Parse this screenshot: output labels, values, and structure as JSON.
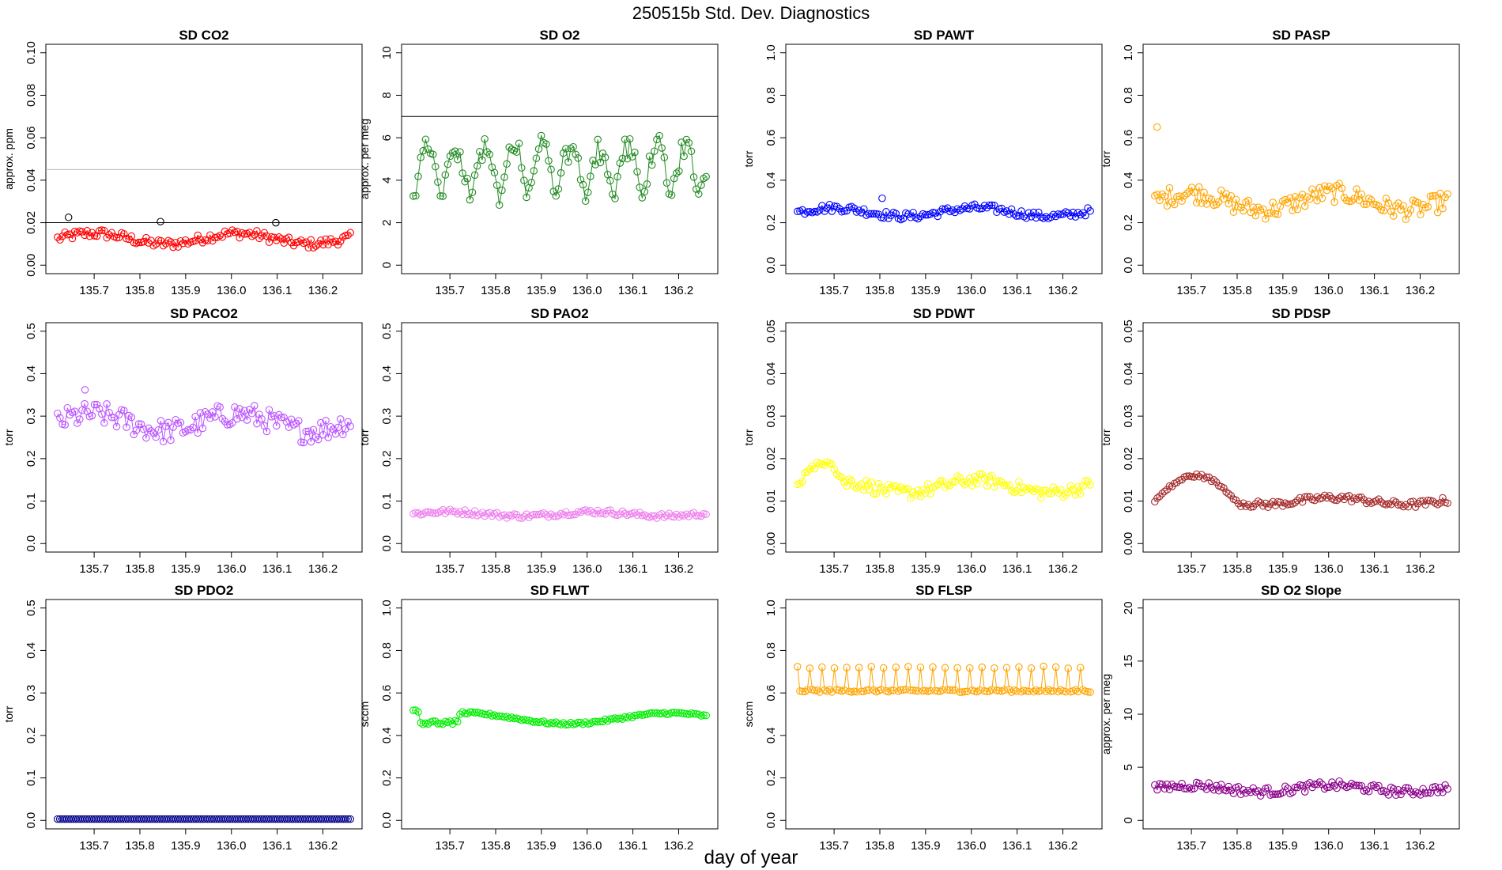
{
  "figure": {
    "title": "250515b   Std. Dev. Diagnostics",
    "xlabel": "day of year"
  },
  "chart_data": [
    {
      "type": "scatter",
      "title": "SD CO2",
      "ylabel": "approx. ppm",
      "color": "#ff0000",
      "ylim": [
        0,
        0.1
      ],
      "yticks": [
        0,
        0.02,
        0.04,
        0.06,
        0.08,
        0.1
      ],
      "ydec": 2,
      "base": 0.0125,
      "amp": 0.0025,
      "noise": 0.0022,
      "period": 0,
      "hlines": [
        {
          "y": 0.02,
          "color": "#000000"
        },
        {
          "y": 0.045,
          "color": "#bbbbbb"
        }
      ],
      "outliers": [
        {
          "x": 135.644,
          "y": 0.0225,
          "color": "#000000"
        },
        {
          "x": 135.845,
          "y": 0.0205,
          "color": "#000000"
        },
        {
          "x": 136.097,
          "y": 0.02,
          "color": "#000000"
        }
      ]
    },
    {
      "type": "scatter",
      "title": "SD O2",
      "ylabel": "approx. per meg",
      "color": "#228b22",
      "ylim": [
        0,
        10
      ],
      "yticks": [
        0,
        2,
        4,
        6,
        8,
        10
      ],
      "ydec": 0,
      "base": 3.0,
      "amp": 2.8,
      "noise": 0.35,
      "period": 0.0625,
      "hlines": [
        {
          "y": 7,
          "color": "#000000"
        }
      ],
      "outliers": []
    },
    {
      "type": "scatter",
      "title": "SD PAWT",
      "ylabel": "torr",
      "color": "#0000ff",
      "ylim": [
        0,
        1
      ],
      "yticks": [
        0,
        0.2,
        0.4,
        0.6,
        0.8,
        1
      ],
      "ydec": 1,
      "base": 0.25,
      "amp": 0.02,
      "noise": 0.018,
      "period": 0,
      "hlines": [],
      "outliers": [
        {
          "x": 135.805,
          "y": 0.315,
          "color": "#0000ff"
        }
      ]
    },
    {
      "type": "scatter",
      "title": "SD PASP",
      "ylabel": "torr",
      "color": "#ffa500",
      "ylim": [
        0,
        1
      ],
      "yticks": [
        0,
        0.2,
        0.4,
        0.6,
        0.8,
        1
      ],
      "ydec": 1,
      "base": 0.3,
      "amp": 0.04,
      "noise": 0.045,
      "period": 0,
      "hlines": [],
      "outliers": [
        {
          "x": 135.625,
          "y": 0.65,
          "color": "#ffa500"
        }
      ]
    },
    {
      "type": "scatter",
      "title": "SD PACO2",
      "ylabel": "torr",
      "color": "#bb55ff",
      "ylim": [
        0,
        0.5
      ],
      "yticks": [
        0,
        0.1,
        0.2,
        0.3,
        0.4,
        0.5
      ],
      "ydec": 1,
      "base": 0.285,
      "amp": 0.02,
      "noise": 0.028,
      "period": 0,
      "hlines": [],
      "outliers": [
        {
          "x": 135.68,
          "y": 0.362,
          "color": "#bb55ff"
        }
      ]
    },
    {
      "type": "scatter",
      "title": "SD PAO2",
      "ylabel": "torr",
      "color": "#ee82ee",
      "ylim": [
        0,
        0.5
      ],
      "yticks": [
        0,
        0.1,
        0.2,
        0.3,
        0.4,
        0.5
      ],
      "ydec": 1,
      "base": 0.07,
      "amp": 0.005,
      "noise": 0.006,
      "period": 0,
      "hlines": [],
      "outliers": []
    },
    {
      "type": "scatter",
      "title": "SD PDWT",
      "ylabel": "torr",
      "color": "#ffff00",
      "ylim": [
        0,
        0.05
      ],
      "yticks": [
        0,
        0.01,
        0.02,
        0.03,
        0.04,
        0.05
      ],
      "ydec": 2,
      "base": 0.0135,
      "amp": 0.0015,
      "noise": 0.0015,
      "period": 0,
      "hlines": [],
      "outliers": [],
      "bump": {
        "x0": 135.62,
        "x1": 135.73,
        "peak": 0.019
      }
    },
    {
      "type": "scatter",
      "title": "SD PDSP",
      "ylabel": "torr",
      "color": "#a52a2a",
      "ylim": [
        0,
        0.05
      ],
      "yticks": [
        0,
        0.01,
        0.02,
        0.03,
        0.04,
        0.05
      ],
      "ydec": 2,
      "base": 0.01,
      "amp": 0.0008,
      "noise": 0.0008,
      "period": 0,
      "hlines": [],
      "outliers": [],
      "bump": {
        "x0": 135.62,
        "x1": 135.8,
        "peak": 0.016
      }
    },
    {
      "type": "scatter",
      "title": "SD PDO2",
      "ylabel": "torr",
      "color": "#00008b",
      "ylim": [
        0,
        0.5
      ],
      "yticks": [
        0,
        0.1,
        0.2,
        0.3,
        0.4,
        0.5
      ],
      "ydec": 1,
      "base": 0.003,
      "amp": 0,
      "noise": 0,
      "period": 0,
      "hlines": [],
      "outliers": [],
      "dense": true
    },
    {
      "type": "scatter",
      "title": "SD FLWT",
      "ylabel": "sccm",
      "color": "#00ee00",
      "ylim": [
        0,
        1
      ],
      "yticks": [
        0,
        0.2,
        0.4,
        0.6,
        0.8,
        1
      ],
      "ydec": 1,
      "base": 0.48,
      "amp": 0.025,
      "noise": 0.006,
      "period": 0,
      "hlines": [],
      "outliers": [],
      "smooth": true
    },
    {
      "type": "scatter",
      "title": "SD FLSP",
      "ylabel": "sccm",
      "color": "#ffa500",
      "ylim": [
        0,
        1
      ],
      "yticks": [
        0,
        0.2,
        0.4,
        0.6,
        0.8,
        1
      ],
      "ydec": 1,
      "base": 0.61,
      "amp": 0,
      "noise": 0.006,
      "period": 0,
      "hlines": [],
      "outliers": [],
      "twoband": [
        0.61,
        0.72
      ]
    },
    {
      "type": "scatter",
      "title": "SD O2 Slope",
      "ylabel": "approx. per meg",
      "color": "#8b008b",
      "ylim": [
        0,
        20
      ],
      "yticks": [
        0,
        5,
        10,
        15,
        20
      ],
      "ydec": 0,
      "base": 3.0,
      "amp": 0.3,
      "noise": 0.4,
      "period": 0,
      "hlines": [],
      "outliers": []
    }
  ],
  "x_axis": {
    "ticks": [
      135.7,
      135.8,
      135.9,
      136.0,
      136.1,
      136.2
    ],
    "range": [
      135.62,
      136.26
    ]
  }
}
